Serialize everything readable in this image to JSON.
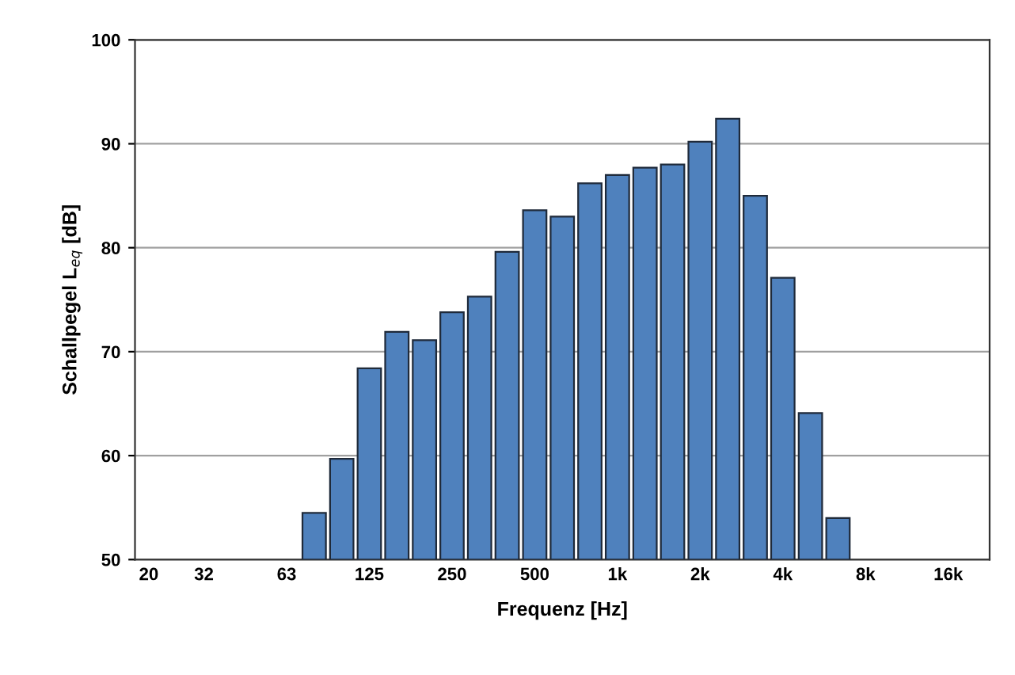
{
  "chart_data": {
    "type": "bar",
    "xlabel": "Frequenz [Hz]",
    "ylabel": "Schallpegel L$_{eq}$ [dB]",
    "categories": [
      "20",
      null,
      "32",
      null,
      null,
      "63",
      null,
      null,
      "125",
      null,
      null,
      "250",
      null,
      null,
      "500",
      null,
      null,
      "1k",
      null,
      null,
      "2k",
      null,
      null,
      "4k",
      null,
      null,
      "8k",
      null,
      null,
      "16k",
      null
    ],
    "values": [
      null,
      null,
      null,
      null,
      null,
      null,
      54.5,
      59.7,
      68.4,
      71.9,
      71.1,
      73.8,
      75.3,
      79.6,
      83.6,
      83.0,
      86.2,
      87.0,
      87.7,
      88.0,
      90.2,
      92.4,
      85.0,
      77.1,
      64.1,
      54.0,
      null,
      null,
      null,
      null,
      null
    ],
    "color": "#4f81bd",
    "ylim": [
      50,
      100
    ],
    "yticks": [
      50,
      60,
      70,
      80,
      90,
      100
    ],
    "grid": "y",
    "legend": false
  }
}
